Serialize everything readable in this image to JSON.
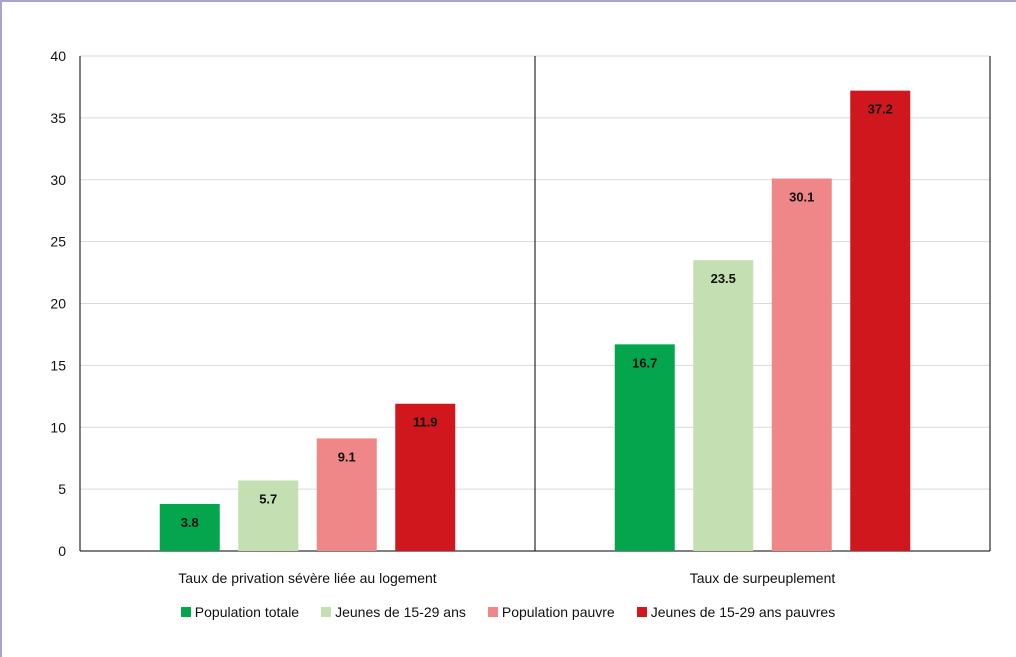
{
  "chart_data": {
    "type": "bar",
    "categories": [
      "Taux de privation sévère liée au logement",
      "Taux de surpeuplement"
    ],
    "series": [
      {
        "name": "Population totale",
        "values": [
          3.8,
          16.7
        ],
        "color": "#05a54e"
      },
      {
        "name": "Jeunes de 15-29 ans",
        "values": [
          5.7,
          23.5
        ],
        "color": "#c4dfb1"
      },
      {
        "name": "Population pauvre",
        "values": [
          9.1,
          30.1
        ],
        "color": "#ef8789"
      },
      {
        "name": "Jeunes de 15-29 ans pauvres",
        "values": [
          11.9,
          37.2
        ],
        "color": "#d0171d"
      }
    ],
    "ylim": [
      0,
      40
    ],
    "yticks": [
      "0",
      "5",
      "10",
      "15",
      "20",
      "25",
      "30",
      "35",
      "40"
    ],
    "grid": true,
    "legend": "bottom"
  }
}
